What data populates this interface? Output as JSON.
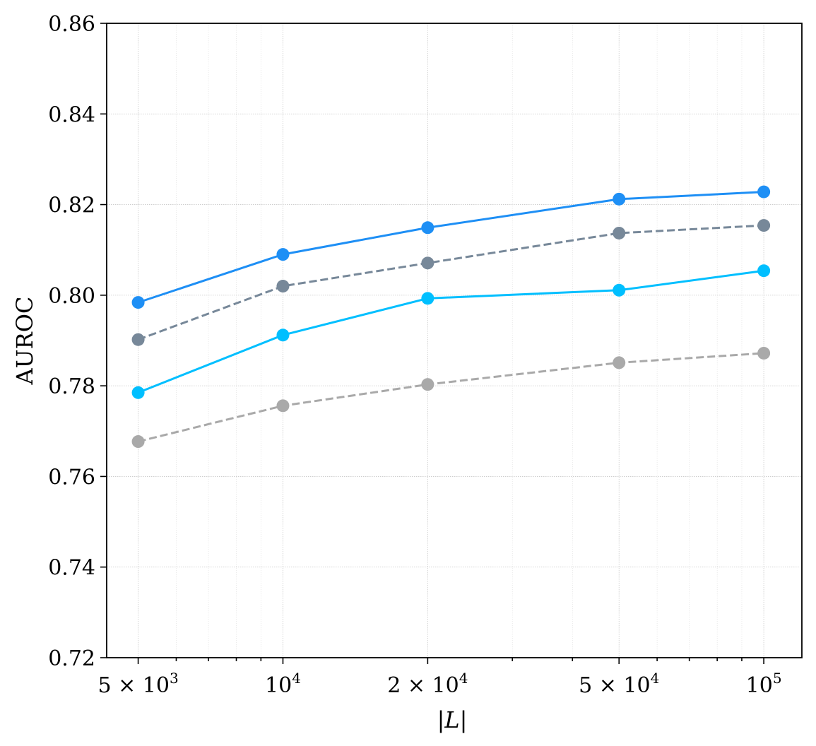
{
  "chart_data": {
    "type": "line",
    "title": "",
    "xlabel": "|L|",
    "ylabel": "AUROC",
    "xscale": "log",
    "xlim": [
      4300,
      120000
    ],
    "ylim": [
      0.72,
      0.86
    ],
    "grid": true,
    "legend": "none",
    "x": [
      5000,
      10000,
      20000,
      50000,
      100000
    ],
    "x_tick_labels": [
      {
        "value": 5000,
        "base": "5 × 10",
        "exp": "3"
      },
      {
        "value": 10000,
        "base": "10",
        "exp": "4"
      },
      {
        "value": 20000,
        "base": "2 × 10",
        "exp": "4"
      },
      {
        "value": 50000,
        "base": "5 × 10",
        "exp": "4"
      },
      {
        "value": 100000,
        "base": "10",
        "exp": "5"
      }
    ],
    "y_ticks": [
      0.72,
      0.74,
      0.76,
      0.78,
      0.8,
      0.82,
      0.84,
      0.86
    ],
    "y_tick_labels": [
      "0.72",
      "0.74",
      "0.76",
      "0.78",
      "0.80",
      "0.82",
      "0.84",
      "0.86"
    ],
    "series": [
      {
        "name": "series-1",
        "color": "#1E8FF5",
        "dash": "solid",
        "values": [
          0.7984,
          0.809,
          0.8149,
          0.8212,
          0.8228
        ]
      },
      {
        "name": "series-2",
        "color": "#778899",
        "dash": "dashed",
        "values": [
          0.7902,
          0.802,
          0.8071,
          0.8137,
          0.8154
        ]
      },
      {
        "name": "series-3",
        "color": "#00BFFF",
        "dash": "solid",
        "values": [
          0.7785,
          0.7912,
          0.7993,
          0.8011,
          0.8054
        ]
      },
      {
        "name": "series-4",
        "color": "#A9A9A9",
        "dash": "dashed",
        "values": [
          0.7677,
          0.7756,
          0.7803,
          0.7851,
          0.7872
        ]
      }
    ]
  }
}
